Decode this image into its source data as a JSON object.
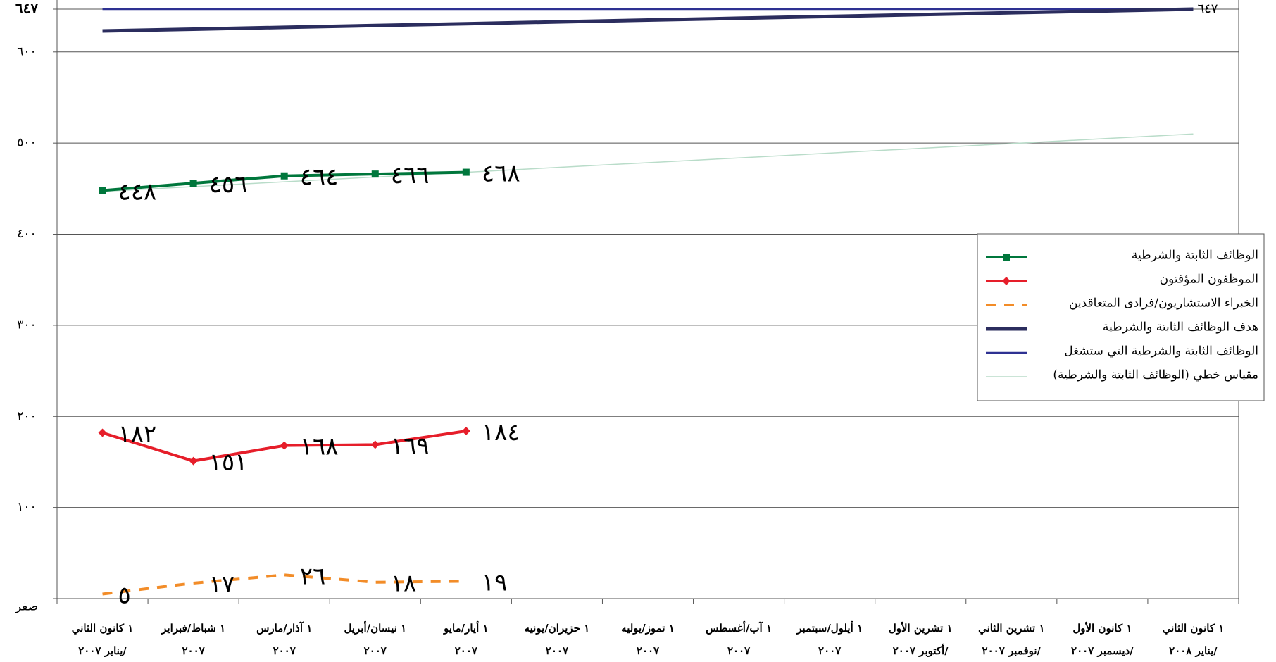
{
  "chart_data": {
    "type": "line",
    "categories": [
      "١ كانون الثاني\n/يناير ٢٠٠٧",
      "١ شباط/فبراير\n٢٠٠٧",
      "١ آذار/مارس\n٢٠٠٧",
      "١ نيسان/أبريل\n٢٠٠٧",
      "١ أيار/مايو\n٢٠٠٧",
      "١ حزيران/يونيه\n٢٠٠٧",
      "١ تموز/يوليه\n٢٠٠٧",
      "١ آب/أغسطس\n٢٠٠٧",
      "١ أيلول/سبتمبر\n٢٠٠٧",
      "١ تشرين الأول\n/أكتوبر ٢٠٠٧",
      "١ تشرين الثاني\n/نوفمبر ٢٠٠٧",
      "١ كانون الأول\n/ديسمبر ٢٠٠٧",
      "١ كانون الثاني\n/يناير ٢٠٠٨"
    ],
    "series": [
      {
        "name": "الوظائف الثابتة والشرطية",
        "color": "#00773c",
        "width": 4,
        "marker": "square",
        "dash": false,
        "values": [
          448,
          456,
          464,
          466,
          468,
          null,
          null,
          null,
          null,
          null,
          null,
          null,
          null
        ],
        "value_labels": [
          "٤٤٨",
          "٤٥٦",
          "٤٦٤",
          "٤٦٦",
          "٤٦٨",
          null,
          null,
          null,
          null,
          null,
          null,
          null,
          null
        ]
      },
      {
        "name": "الموظفون المؤقتون",
        "color": "#e61e2a",
        "width": 4,
        "marker": "diamond",
        "dash": false,
        "values": [
          182,
          151,
          168,
          169,
          184,
          null,
          null,
          null,
          null,
          null,
          null,
          null,
          null
        ],
        "value_labels": [
          "١٨٢",
          "١٥١",
          "١٦٨",
          "١٦٩",
          "١٨٤",
          null,
          null,
          null,
          null,
          null,
          null,
          null,
          null
        ]
      },
      {
        "name": "الخبراء الاستشاريون/فرادى المتعاقدين",
        "color": "#f28c28",
        "width": 4,
        "marker": "none",
        "dash": true,
        "values": [
          5,
          17,
          26,
          18,
          19,
          null,
          null,
          null,
          null,
          null,
          null,
          null,
          null
        ],
        "value_labels": [
          "٥",
          "١٧",
          "٢٦",
          "١٨",
          "١٩",
          null,
          null,
          null,
          null,
          null,
          null,
          null,
          null
        ]
      },
      {
        "name": "هدف الوظائف الثابتة والشرطية",
        "color": "#2b2d5e",
        "width": 5,
        "marker": "none",
        "dash": false,
        "values": [
          623,
          625,
          627,
          629,
          631,
          633,
          635,
          637,
          639,
          641,
          643,
          645,
          647
        ]
      },
      {
        "name": "الوظائف الثابتة والشرطية التي ستشغل",
        "color": "#2e3192",
        "width": 2.5,
        "marker": "none",
        "dash": false,
        "values": [
          647,
          647,
          647,
          647,
          647,
          647,
          647,
          647,
          647,
          647,
          647,
          647,
          647
        ],
        "value_labels": [
          null,
          null,
          null,
          null,
          null,
          null,
          null,
          null,
          null,
          null,
          null,
          null,
          "٦٤٧"
        ]
      },
      {
        "name": "مقياس خطي (الوظائف الثابتة والشرطية)",
        "color": "#b9dcc9",
        "width": 1.5,
        "marker": "none",
        "dash": false,
        "values": [
          447,
          452.25,
          457.5,
          462.75,
          468,
          473.25,
          478.5,
          483.75,
          489,
          494.25,
          499.5,
          504.75,
          510
        ]
      }
    ],
    "ylim": [
      0,
      647
    ],
    "yticks": [
      {
        "value": 0,
        "label": "صفر"
      },
      {
        "value": 100,
        "label": "١٠٠"
      },
      {
        "value": 200,
        "label": "٢٠٠"
      },
      {
        "value": 300,
        "label": "٣٠٠"
      },
      {
        "value": 400,
        "label": "٤٠٠"
      },
      {
        "value": 500,
        "label": "٥٠٠"
      },
      {
        "value": 600,
        "label": "٦٠٠"
      },
      {
        "value": 647,
        "label": "٦٤٧"
      }
    ],
    "grid": true,
    "legend": "right"
  }
}
